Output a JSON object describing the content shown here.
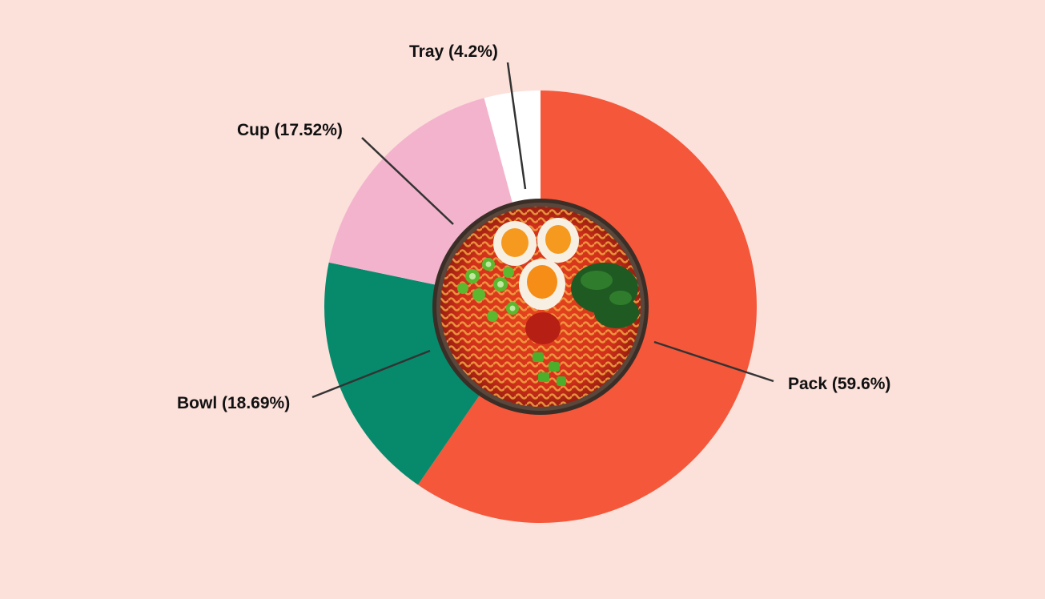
{
  "chart_data": {
    "type": "pie",
    "variant": "donut",
    "title": "",
    "categories": [
      "Pack",
      "Bowl",
      "Cup",
      "Tray"
    ],
    "values": [
      59.6,
      18.69,
      17.52,
      4.2
    ],
    "unit": "%",
    "colors": [
      "#f5573a",
      "#078a6c",
      "#f4b3cd",
      "#ffffff"
    ],
    "labels": [
      "Pack (59.6%)",
      "Bowl (18.69%)",
      "Cup (17.52%)",
      "Tray (4.2%)"
    ],
    "start_angle": "12 o'clock",
    "direction": "clockwise",
    "center_image": "bowl-of-spicy-ramen-with-eggs-and-greens",
    "legend": "none"
  },
  "colors": {
    "background": "#fce0da",
    "leader_line": "#333333"
  }
}
